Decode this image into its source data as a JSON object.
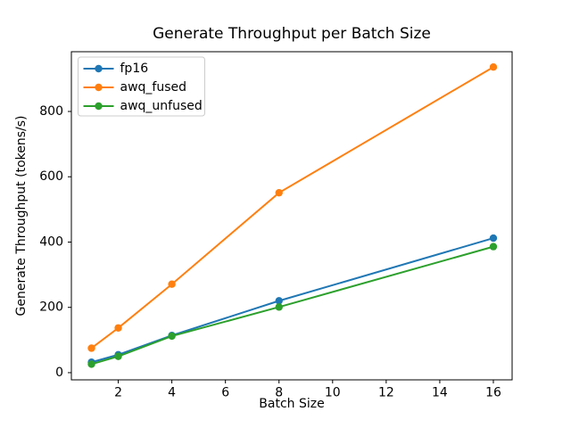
{
  "chart_data": {
    "type": "line",
    "title": "Generate Throughput per Batch Size",
    "xlabel": "Batch Size",
    "ylabel": "Generate Throughput (tokens/s)",
    "x": [
      1,
      2,
      4,
      8,
      16
    ],
    "series": [
      {
        "name": "fp16",
        "color": "#1f77b4",
        "values": [
          32,
          55,
          114,
          220,
          412
        ]
      },
      {
        "name": "awq_fused",
        "color": "#ff7f0e",
        "values": [
          75,
          137,
          271,
          551,
          936
        ]
      },
      {
        "name": "awq_unfused",
        "color": "#2ca02c",
        "values": [
          26,
          50,
          112,
          201,
          386
        ]
      }
    ],
    "xticks": [
      2,
      4,
      6,
      8,
      10,
      12,
      14,
      16
    ],
    "yticks": [
      0,
      200,
      400,
      600,
      800
    ],
    "xlim": [
      0.25,
      16.7
    ],
    "ylim": [
      -22,
      983
    ],
    "grid": false,
    "legend_position": "upper-left",
    "marker": "circle",
    "colors": {
      "axis": "#000000",
      "legend_border": "#cccccc",
      "background": "#ffffff"
    }
  }
}
